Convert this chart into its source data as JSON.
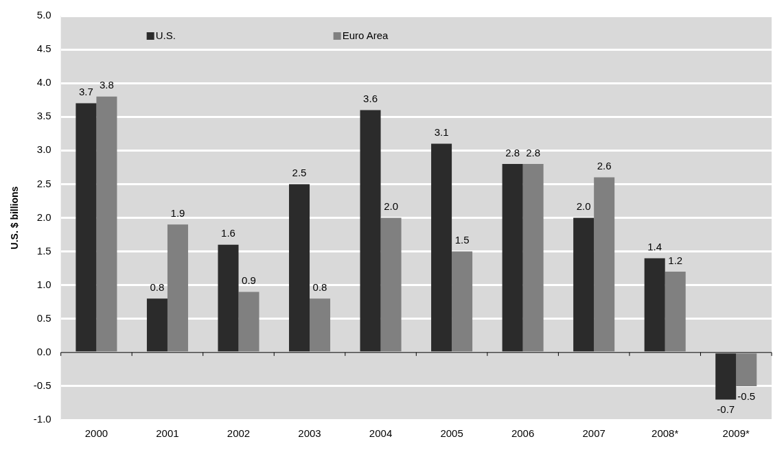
{
  "chart_data": {
    "type": "bar",
    "ylabel": "U.S. $ billions",
    "categories": [
      "2000",
      "2001",
      "2002",
      "2003",
      "2004",
      "2005",
      "2006",
      "2007",
      "2008*",
      "2009*"
    ],
    "series": [
      {
        "name": "U.S.",
        "color": "#2b2b2b",
        "values": [
          3.7,
          0.8,
          1.6,
          2.5,
          3.6,
          3.1,
          2.8,
          2.0,
          1.4,
          -0.7
        ],
        "value_labels": [
          "3.7",
          "0.8",
          "1.6",
          "2.5",
          "3.6",
          "3.1",
          "2.8",
          "2.0",
          "1.4",
          "-0.7"
        ]
      },
      {
        "name": "Euro Area",
        "color": "#808080",
        "values": [
          3.8,
          1.9,
          0.9,
          0.8,
          2.0,
          1.5,
          2.8,
          2.6,
          1.2,
          -0.5
        ],
        "value_labels": [
          "3.8",
          "1.9",
          "0.9",
          "0.8",
          "2.0",
          "1.5",
          "2.8",
          "2.6",
          "1.2",
          "-0.5"
        ]
      }
    ],
    "ylim": [
      -1.0,
      5.0
    ],
    "yticks": [
      {
        "value": -1,
        "label": "-1.0"
      },
      {
        "value": -0.5,
        "label": "-0.5"
      },
      {
        "value": 0,
        "label": "0.0"
      },
      {
        "value": 0.5,
        "label": "0.5"
      },
      {
        "value": 1,
        "label": "1.0"
      },
      {
        "value": 1.5,
        "label": "1.5"
      },
      {
        "value": 2,
        "label": "2.0"
      },
      {
        "value": 2.5,
        "label": "2.5"
      },
      {
        "value": 3,
        "label": "3.0"
      },
      {
        "value": 3.5,
        "label": "3.5"
      },
      {
        "value": 4,
        "label": "4.0"
      },
      {
        "value": 4.5,
        "label": "4.5"
      },
      {
        "value": 5,
        "label": "5.0"
      }
    ],
    "grid": "y",
    "legend": "top left"
  }
}
